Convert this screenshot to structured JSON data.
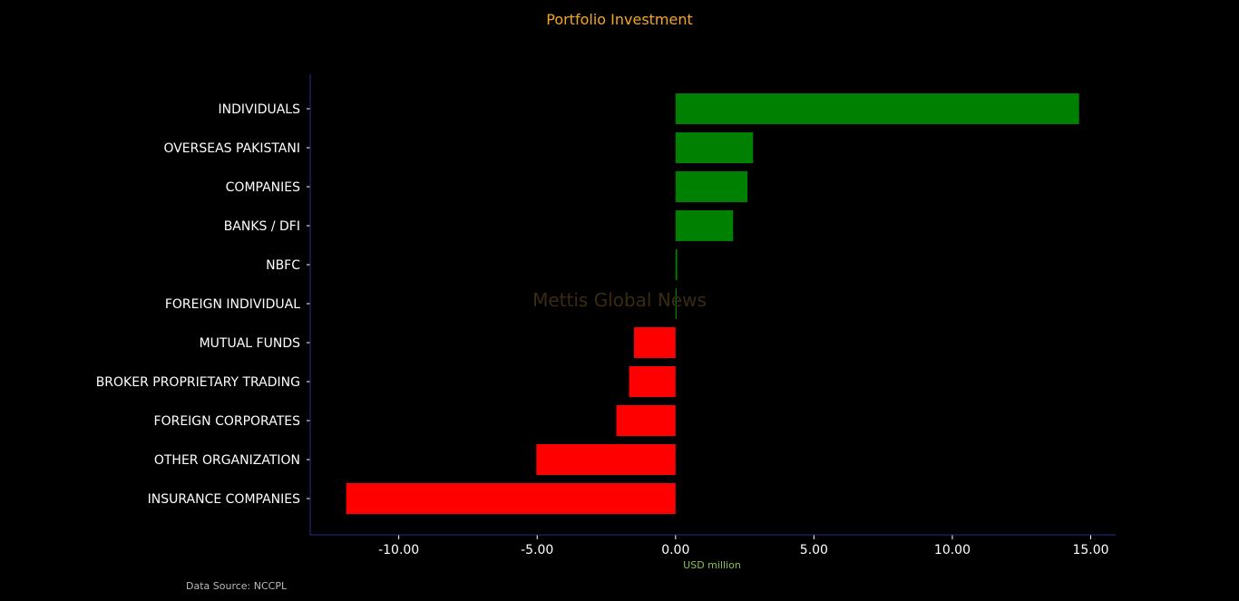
{
  "chart_data": {
    "type": "bar",
    "orientation": "horizontal",
    "title": "Portfolio Investment",
    "xlabel": "USD million",
    "ylabel": "",
    "categories": [
      "INDIVIDUALS",
      "OVERSEAS PAKISTANI",
      "COMPANIES",
      "BANKS / DFI",
      "NBFC",
      "FOREIGN INDIVIDUAL",
      "MUTUAL FUNDS",
      "BROKER PROPRIETARY TRADING",
      "FOREIGN CORPORATES",
      "OTHER ORGANIZATION",
      "INSURANCE COMPANIES"
    ],
    "values": [
      14.58,
      2.8,
      2.6,
      2.08,
      0.06,
      0.03,
      -1.5,
      -1.68,
      -2.14,
      -5.03,
      -11.9
    ],
    "xlim": [
      -13.2,
      15.9
    ],
    "xticks": [
      -10,
      -5,
      0,
      5,
      10,
      15
    ],
    "xtick_labels": [
      "-10.00",
      "-5.00",
      "0.00",
      "5.00",
      "10.00",
      "15.00"
    ],
    "grid": false,
    "legend": "none",
    "colors": {
      "positive": "#008000",
      "negative": "#ff0000",
      "title": "#f5a623",
      "xlabel": "#8bc34a",
      "axis": "#2a2a9a",
      "text": "#ffffff",
      "watermark": "#3a2a12"
    }
  },
  "watermark": "Mettis Global News",
  "source_note": "Data Source: NCCPL"
}
